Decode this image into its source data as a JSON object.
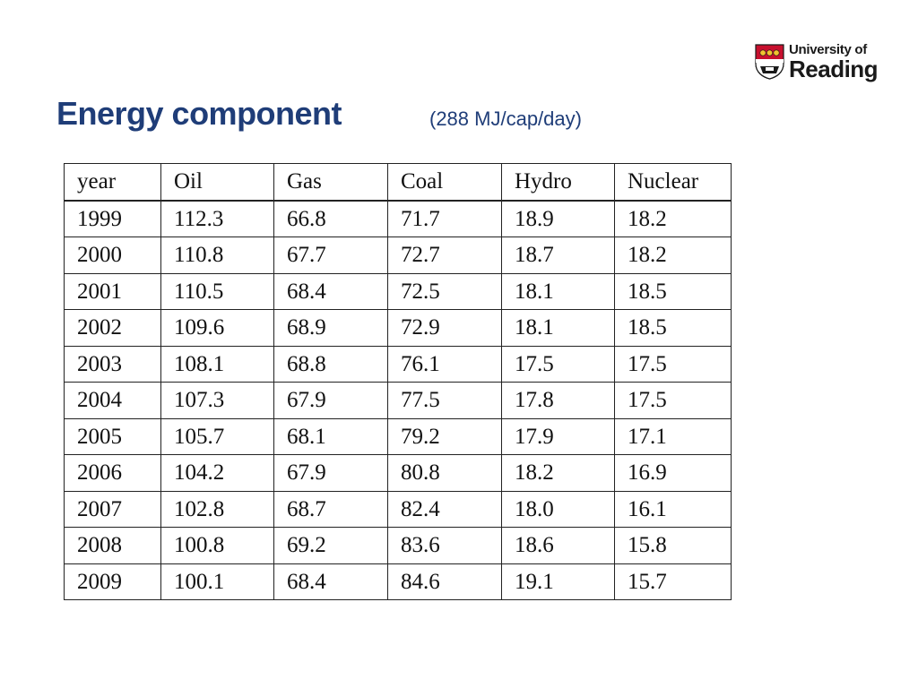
{
  "logo": {
    "line1": "University of",
    "line2": "Reading"
  },
  "slide": {
    "title": "Energy component",
    "subtitle": "(288 MJ/cap/day)"
  },
  "table": {
    "headers": [
      "year",
      "Oil",
      "Gas",
      "Coal",
      "Hydro",
      "Nuclear"
    ],
    "rows": [
      [
        "1999",
        "112.3",
        "66.8",
        "71.7",
        "18.9",
        "18.2"
      ],
      [
        "2000",
        "110.8",
        "67.7",
        "72.7",
        "18.7",
        "18.2"
      ],
      [
        "2001",
        "110.5",
        "68.4",
        "72.5",
        "18.1",
        "18.5"
      ],
      [
        "2002",
        "109.6",
        "68.9",
        "72.9",
        "18.1",
        "18.5"
      ],
      [
        "2003",
        "108.1",
        "68.8",
        "76.1",
        "17.5",
        "17.5"
      ],
      [
        "2004",
        "107.3",
        "67.9",
        "77.5",
        "17.8",
        "17.5"
      ],
      [
        "2005",
        "105.7",
        "68.1",
        "79.2",
        "17.9",
        "17.1"
      ],
      [
        "2006",
        "104.2",
        "67.9",
        "80.8",
        "18.2",
        "16.9"
      ],
      [
        "2007",
        "102.8",
        "68.7",
        "82.4",
        "18.0",
        "16.1"
      ],
      [
        "2008",
        "100.8",
        "69.2",
        "83.6",
        "18.6",
        "15.8"
      ],
      [
        "2009",
        "100.1",
        "68.4",
        "84.6",
        "19.1",
        "15.7"
      ]
    ]
  },
  "colors": {
    "title": "#1f3d78",
    "crest_red": "#c8102e",
    "crest_gold": "#f2c230"
  },
  "icons": {
    "logo_crest": "university-crest-icon"
  }
}
